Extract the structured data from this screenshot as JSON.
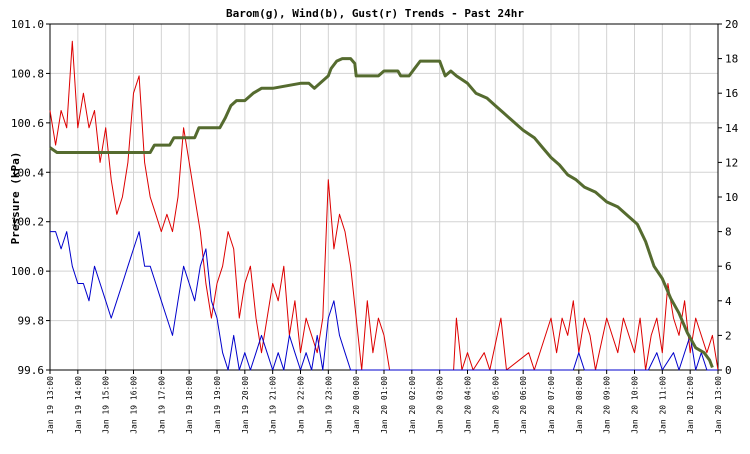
{
  "chart_data": {
    "type": "line",
    "title": "Barom(g), Wind(b), Gust(r) Trends - Past 24hr",
    "ylabel": "Pressure (kPa)",
    "ylim": [
      99.6,
      101.0
    ],
    "y2lim": [
      0,
      20
    ],
    "grid": true,
    "yticks": [
      "99.6",
      "99.8",
      "100.0",
      "100.2",
      "100.4",
      "100.6",
      "100.8",
      "101.0"
    ],
    "y2ticks": [
      "0",
      "2",
      "4",
      "6",
      "8",
      "10",
      "12",
      "14",
      "16",
      "18",
      "20"
    ],
    "xticks": [
      "Jan 19 13:00",
      "Jan 19 14:00",
      "Jan 19 15:00",
      "Jan 19 16:00",
      "Jan 19 17:00",
      "Jan 19 18:00",
      "Jan 19 19:00",
      "Jan 19 20:00",
      "Jan 19 21:00",
      "Jan 19 22:00",
      "Jan 19 23:00",
      "Jan 20 00:00",
      "Jan 20 01:00",
      "Jan 20 02:00",
      "Jan 20 03:00",
      "Jan 20 04:00",
      "Jan 20 05:00",
      "Jan 20 06:00",
      "Jan 20 07:00",
      "Jan 20 08:00",
      "Jan 20 09:00",
      "Jan 20 10:00",
      "Jan 20 11:00",
      "Jan 20 12:00",
      "Jan 20 13:00"
    ],
    "series": [
      {
        "key": "barom",
        "color": "#556b2f",
        "axis": "left",
        "points": [
          [
            0,
            100.5
          ],
          [
            0.25,
            100.48
          ],
          [
            3.6,
            100.48
          ],
          [
            3.75,
            100.51
          ],
          [
            4.3,
            100.51
          ],
          [
            4.45,
            100.54
          ],
          [
            5.2,
            100.54
          ],
          [
            5.35,
            100.58
          ],
          [
            6.1,
            100.58
          ],
          [
            6.3,
            100.62
          ],
          [
            6.5,
            100.67
          ],
          [
            6.7,
            100.69
          ],
          [
            7.0,
            100.69
          ],
          [
            7.3,
            100.72
          ],
          [
            7.6,
            100.74
          ],
          [
            8.0,
            100.74
          ],
          [
            9.0,
            100.76
          ],
          [
            9.3,
            100.76
          ],
          [
            9.5,
            100.74
          ],
          [
            9.7,
            100.76
          ],
          [
            10.0,
            100.79
          ],
          [
            10.1,
            100.82
          ],
          [
            10.3,
            100.85
          ],
          [
            10.5,
            100.86
          ],
          [
            10.8,
            100.86
          ],
          [
            10.95,
            100.84
          ],
          [
            11.0,
            100.79
          ],
          [
            11.8,
            100.79
          ],
          [
            12.0,
            100.81
          ],
          [
            12.5,
            100.81
          ],
          [
            12.6,
            100.79
          ],
          [
            12.9,
            100.79
          ],
          [
            13.1,
            100.82
          ],
          [
            13.3,
            100.85
          ],
          [
            14.0,
            100.85
          ],
          [
            14.2,
            100.79
          ],
          [
            14.4,
            100.81
          ],
          [
            14.6,
            100.79
          ],
          [
            15.0,
            100.76
          ],
          [
            15.3,
            100.72
          ],
          [
            15.7,
            100.7
          ],
          [
            16.0,
            100.67
          ],
          [
            16.3,
            100.64
          ],
          [
            16.6,
            100.61
          ],
          [
            17.0,
            100.57
          ],
          [
            17.4,
            100.54
          ],
          [
            17.7,
            100.5
          ],
          [
            18.0,
            100.46
          ],
          [
            18.3,
            100.43
          ],
          [
            18.6,
            100.39
          ],
          [
            18.9,
            100.37
          ],
          [
            19.2,
            100.34
          ],
          [
            19.6,
            100.32
          ],
          [
            20.0,
            100.28
          ],
          [
            20.4,
            100.26
          ],
          [
            20.8,
            100.22
          ],
          [
            21.1,
            100.19
          ],
          [
            21.4,
            100.12
          ],
          [
            21.7,
            100.02
          ],
          [
            22.0,
            99.97
          ],
          [
            22.3,
            99.89
          ],
          [
            22.6,
            99.83
          ],
          [
            22.9,
            99.75
          ],
          [
            23.2,
            99.69
          ],
          [
            23.5,
            99.67
          ],
          [
            23.7,
            99.64
          ],
          [
            23.8,
            99.61
          ]
        ]
      },
      {
        "key": "wind",
        "color": "#0000cc",
        "axis": "right",
        "points": [
          [
            0,
            8
          ],
          [
            0.2,
            8
          ],
          [
            0.4,
            7
          ],
          [
            0.6,
            8
          ],
          [
            0.8,
            6
          ],
          [
            1.0,
            5
          ],
          [
            1.2,
            5
          ],
          [
            1.4,
            4
          ],
          [
            1.6,
            6
          ],
          [
            1.8,
            5
          ],
          [
            2.0,
            4
          ],
          [
            2.2,
            3
          ],
          [
            2.4,
            4
          ],
          [
            2.6,
            5
          ],
          [
            2.8,
            6
          ],
          [
            3.0,
            7
          ],
          [
            3.2,
            8
          ],
          [
            3.4,
            6
          ],
          [
            3.6,
            6
          ],
          [
            3.8,
            5
          ],
          [
            4.0,
            4
          ],
          [
            4.2,
            3
          ],
          [
            4.4,
            2
          ],
          [
            4.6,
            4
          ],
          [
            4.8,
            6
          ],
          [
            5.0,
            5
          ],
          [
            5.2,
            4
          ],
          [
            5.4,
            6
          ],
          [
            5.6,
            7
          ],
          [
            5.8,
            4
          ],
          [
            6.0,
            3
          ],
          [
            6.2,
            1
          ],
          [
            6.4,
            0
          ],
          [
            6.6,
            2
          ],
          [
            6.8,
            0
          ],
          [
            7.0,
            1
          ],
          [
            7.2,
            0
          ],
          [
            7.4,
            1
          ],
          [
            7.6,
            2
          ],
          [
            7.8,
            1
          ],
          [
            8.0,
            0
          ],
          [
            8.2,
            1
          ],
          [
            8.4,
            0
          ],
          [
            8.6,
            2
          ],
          [
            8.8,
            1
          ],
          [
            9.0,
            0
          ],
          [
            9.2,
            1
          ],
          [
            9.4,
            0
          ],
          [
            9.6,
            2
          ],
          [
            9.8,
            0
          ],
          [
            10.0,
            3
          ],
          [
            10.2,
            4
          ],
          [
            10.4,
            2
          ],
          [
            10.6,
            1
          ],
          [
            10.8,
            0
          ],
          [
            11.0,
            0
          ],
          [
            18.8,
            0
          ],
          [
            19.0,
            1
          ],
          [
            19.2,
            0
          ],
          [
            20.5,
            0
          ],
          [
            21.5,
            0
          ],
          [
            21.8,
            1
          ],
          [
            22.0,
            0
          ],
          [
            22.4,
            1
          ],
          [
            22.6,
            0
          ],
          [
            23.0,
            2
          ],
          [
            23.2,
            0
          ],
          [
            23.4,
            1
          ],
          [
            23.6,
            0
          ],
          [
            24,
            0
          ]
        ]
      },
      {
        "key": "gust",
        "color": "#dd0000",
        "axis": "right",
        "points": [
          [
            0,
            15
          ],
          [
            0.2,
            13
          ],
          [
            0.4,
            15
          ],
          [
            0.6,
            14
          ],
          [
            0.8,
            19
          ],
          [
            1.0,
            14
          ],
          [
            1.2,
            16
          ],
          [
            1.4,
            14
          ],
          [
            1.6,
            15
          ],
          [
            1.8,
            12
          ],
          [
            2.0,
            14
          ],
          [
            2.2,
            11
          ],
          [
            2.4,
            9
          ],
          [
            2.6,
            10
          ],
          [
            2.8,
            12
          ],
          [
            3.0,
            16
          ],
          [
            3.2,
            17
          ],
          [
            3.4,
            12
          ],
          [
            3.6,
            10
          ],
          [
            3.8,
            9
          ],
          [
            4.0,
            8
          ],
          [
            4.2,
            9
          ],
          [
            4.4,
            8
          ],
          [
            4.6,
            10
          ],
          [
            4.8,
            14
          ],
          [
            5.0,
            12
          ],
          [
            5.2,
            10
          ],
          [
            5.4,
            8
          ],
          [
            5.6,
            5
          ],
          [
            5.8,
            3
          ],
          [
            6.0,
            5
          ],
          [
            6.2,
            6
          ],
          [
            6.4,
            8
          ],
          [
            6.6,
            7
          ],
          [
            6.8,
            3
          ],
          [
            7.0,
            5
          ],
          [
            7.2,
            6
          ],
          [
            7.4,
            3
          ],
          [
            7.6,
            1
          ],
          [
            7.8,
            3
          ],
          [
            8.0,
            5
          ],
          [
            8.2,
            4
          ],
          [
            8.4,
            6
          ],
          [
            8.6,
            2
          ],
          [
            8.8,
            4
          ],
          [
            9.0,
            1
          ],
          [
            9.2,
            3
          ],
          [
            9.4,
            2
          ],
          [
            9.6,
            1
          ],
          [
            9.8,
            3
          ],
          [
            10.0,
            11
          ],
          [
            10.2,
            7
          ],
          [
            10.4,
            9
          ],
          [
            10.6,
            8
          ],
          [
            10.8,
            6
          ],
          [
            11.0,
            3
          ],
          [
            11.2,
            0
          ],
          [
            11.4,
            4
          ],
          [
            11.6,
            1
          ],
          [
            11.8,
            3
          ],
          [
            12.0,
            2
          ],
          [
            12.2,
            0
          ],
          [
            14.5,
            0
          ],
          [
            14.6,
            3
          ],
          [
            14.8,
            0
          ],
          [
            15.0,
            1
          ],
          [
            15.2,
            0
          ],
          [
            15.6,
            1
          ],
          [
            15.8,
            0
          ],
          [
            16.2,
            3
          ],
          [
            16.4,
            0
          ],
          [
            17.2,
            1
          ],
          [
            17.4,
            0
          ],
          [
            18.0,
            3
          ],
          [
            18.2,
            1
          ],
          [
            18.4,
            3
          ],
          [
            18.6,
            2
          ],
          [
            18.8,
            4
          ],
          [
            19.0,
            1
          ],
          [
            19.2,
            3
          ],
          [
            19.4,
            2
          ],
          [
            19.6,
            0
          ],
          [
            20.0,
            3
          ],
          [
            20.2,
            2
          ],
          [
            20.4,
            1
          ],
          [
            20.6,
            3
          ],
          [
            20.8,
            2
          ],
          [
            21.0,
            1
          ],
          [
            21.2,
            3
          ],
          [
            21.4,
            0
          ],
          [
            21.6,
            2
          ],
          [
            21.8,
            3
          ],
          [
            22.0,
            1
          ],
          [
            22.2,
            5
          ],
          [
            22.4,
            3
          ],
          [
            22.6,
            2
          ],
          [
            22.8,
            4
          ],
          [
            23.0,
            1
          ],
          [
            23.2,
            3
          ],
          [
            23.4,
            2
          ],
          [
            23.6,
            1
          ],
          [
            23.8,
            2
          ],
          [
            24,
            0
          ]
        ]
      }
    ]
  }
}
